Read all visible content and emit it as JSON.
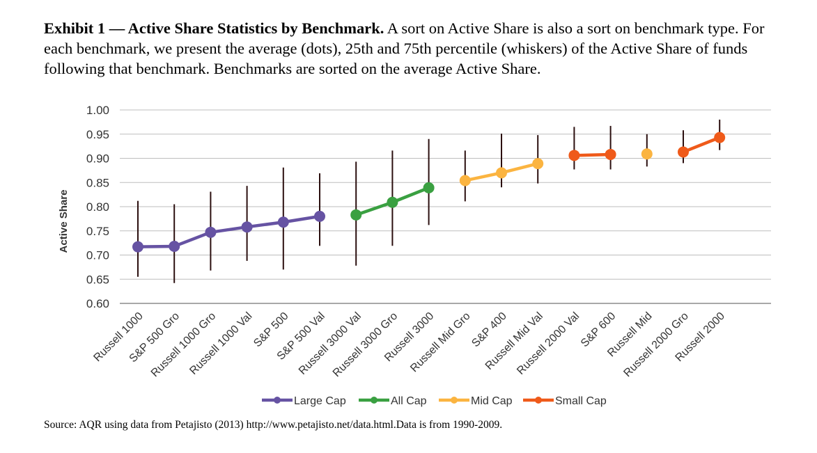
{
  "caption": {
    "title": "Exhibit 1 — Active Share Statistics by Benchmark.",
    "body": "A sort on Active Share is also a sort on benchmark type.  For each benchmark, we present the average (dots), 25th and 75th percentile (whiskers) of the Active Share of funds following that benchmark. Benchmarks are sorted on the average Active Share."
  },
  "source": "Source: AQR using data from Petajisto (2013) http://www.petajisto.net/data.html.Data is from 1990-2009.",
  "chart_data": {
    "type": "line",
    "ylabel": "Active Share",
    "xlabel": "",
    "ylim": [
      0.6,
      1.0
    ],
    "yticks": [
      "1.00",
      "0.95",
      "0.90",
      "0.85",
      "0.80",
      "0.75",
      "0.70",
      "0.65",
      "0.60"
    ],
    "ytick_values": [
      1.0,
      0.95,
      0.9,
      0.85,
      0.8,
      0.75,
      0.7,
      0.65,
      0.6
    ],
    "grid": true,
    "legend_position": "bottom",
    "categories": [
      "Russell 1000",
      "S&P 500 Gro",
      "Russell 1000 Gro",
      "Russell 1000 Val",
      "S&P 500",
      "S&P 500 Val",
      "Russell 3000 Val",
      "Russell 3000 Gro",
      "Russell 3000",
      "Russell Mid Gro",
      "S&P 400",
      "Russell Mid Val",
      "Russell 2000 Val",
      "S&P 600",
      "Russell Mid",
      "Russell 2000 Gro",
      "Russell 2000"
    ],
    "averages": [
      0.717,
      0.718,
      0.747,
      0.758,
      0.768,
      0.78,
      0.783,
      0.809,
      0.839,
      0.854,
      0.87,
      0.889,
      0.906,
      0.908,
      0.909,
      0.913,
      0.943
    ],
    "p25": [
      0.655,
      0.642,
      0.668,
      0.688,
      0.67,
      0.719,
      0.678,
      0.719,
      0.762,
      0.811,
      0.84,
      0.848,
      0.877,
      0.877,
      0.883,
      0.89,
      0.917
    ],
    "p75": [
      0.812,
      0.805,
      0.831,
      0.843,
      0.881,
      0.869,
      0.893,
      0.916,
      0.94,
      0.916,
      0.951,
      0.948,
      0.965,
      0.967,
      0.95,
      0.958,
      0.98
    ],
    "series": [
      {
        "name": "Large Cap",
        "color": "#6653a3",
        "indices": [
          0,
          1,
          2,
          3,
          4,
          5
        ]
      },
      {
        "name": "All Cap",
        "color": "#3aa041",
        "indices": [
          6,
          7,
          8
        ]
      },
      {
        "name": "Mid Cap",
        "color": "#fbb440",
        "indices": [
          9,
          10,
          11,
          14
        ]
      },
      {
        "name": "Small Cap",
        "color": "#ef5a1a",
        "indices": [
          12,
          13,
          15,
          16
        ]
      }
    ]
  }
}
